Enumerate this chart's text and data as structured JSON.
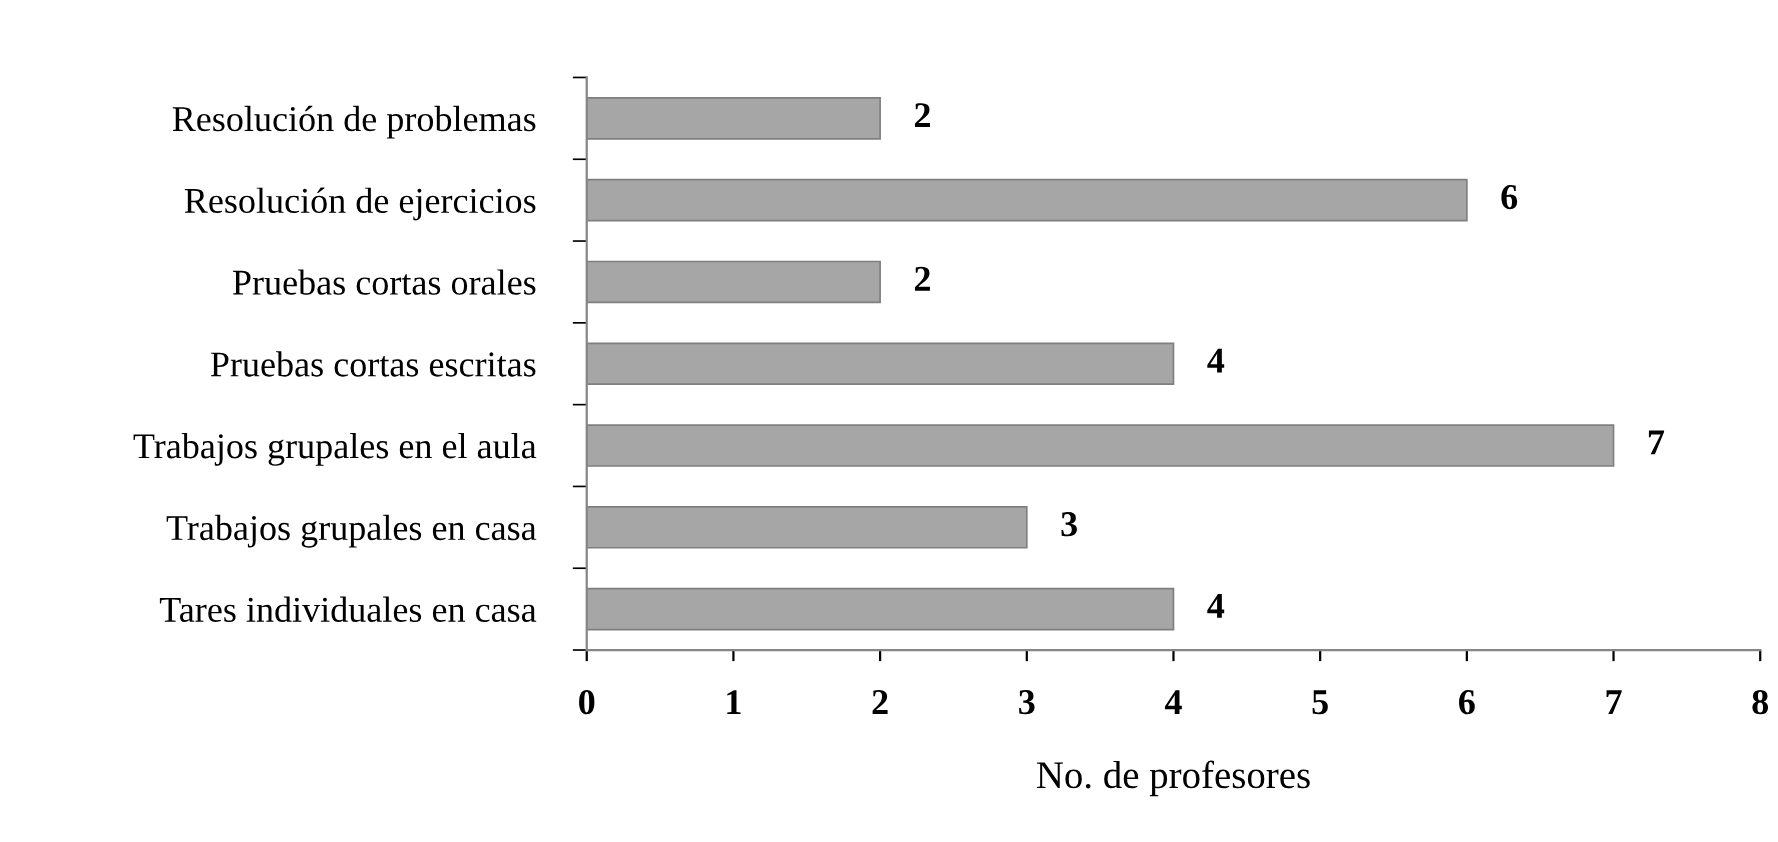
{
  "chart_data": {
    "type": "bar",
    "orientation": "horizontal",
    "xlabel": "No. de profesores",
    "categories": [
      "Resolución de problemas",
      "Resolución de ejercicios",
      "Pruebas cortas orales",
      "Pruebas cortas escritas",
      "Trabajos grupales en el aula",
      "Trabajos grupales en casa",
      "Tares individuales en casa"
    ],
    "values": [
      2,
      6,
      2,
      4,
      7,
      3,
      4
    ],
    "color": "#a6a6a6",
    "xlim": [
      0,
      8
    ],
    "xticks": [
      0,
      1,
      2,
      3,
      4,
      5,
      6,
      7,
      8
    ],
    "data_labels": true,
    "grid": false,
    "legend": false
  }
}
